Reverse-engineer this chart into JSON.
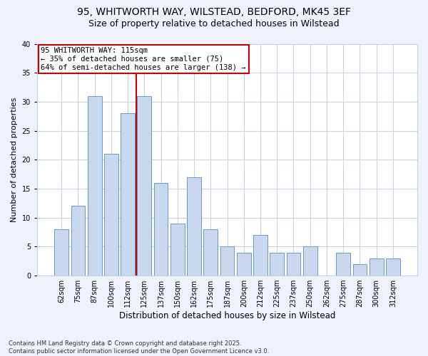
{
  "title": "95, WHITWORTH WAY, WILSTEAD, BEDFORD, MK45 3EF",
  "subtitle": "Size of property relative to detached houses in Wilstead",
  "xlabel": "Distribution of detached houses by size in Wilstead",
  "ylabel": "Number of detached properties",
  "categories": [
    "62sqm",
    "75sqm",
    "87sqm",
    "100sqm",
    "112sqm",
    "125sqm",
    "137sqm",
    "150sqm",
    "162sqm",
    "175sqm",
    "187sqm",
    "200sqm",
    "212sqm",
    "225sqm",
    "237sqm",
    "250sqm",
    "262sqm",
    "275sqm",
    "287sqm",
    "300sqm",
    "312sqm"
  ],
  "values": [
    8,
    12,
    31,
    21,
    28,
    31,
    16,
    9,
    17,
    8,
    5,
    4,
    7,
    4,
    4,
    5,
    0,
    4,
    2,
    3,
    3
  ],
  "bar_color": "#c8d9ef",
  "bar_edge_color": "#6699cc",
  "vline_x": 4.5,
  "vline_color": "#cc0000",
  "ylim": [
    0,
    40
  ],
  "yticks": [
    0,
    5,
    10,
    15,
    20,
    25,
    30,
    35,
    40
  ],
  "annotation_line1": "95 WHITWORTH WAY: 115sqm",
  "annotation_line2": "← 35% of detached houses are smaller (75)",
  "annotation_line3": "64% of semi-detached houses are larger (138) →",
  "annotation_box_edgecolor": "#cc0000",
  "footer_line1": "Contains HM Land Registry data © Crown copyright and database right 2025.",
  "footer_line2": "Contains public sector information licensed under the Open Government Licence v3.0.",
  "bg_color": "#eef2fb",
  "plot_bg_color": "#ffffff",
  "grid_color": "#c5cfe8",
  "title_fontsize": 10,
  "subtitle_fontsize": 9,
  "ylabel_fontsize": 8,
  "xlabel_fontsize": 8.5,
  "tick_fontsize": 7,
  "footer_fontsize": 6,
  "ann_fontsize": 7.5
}
